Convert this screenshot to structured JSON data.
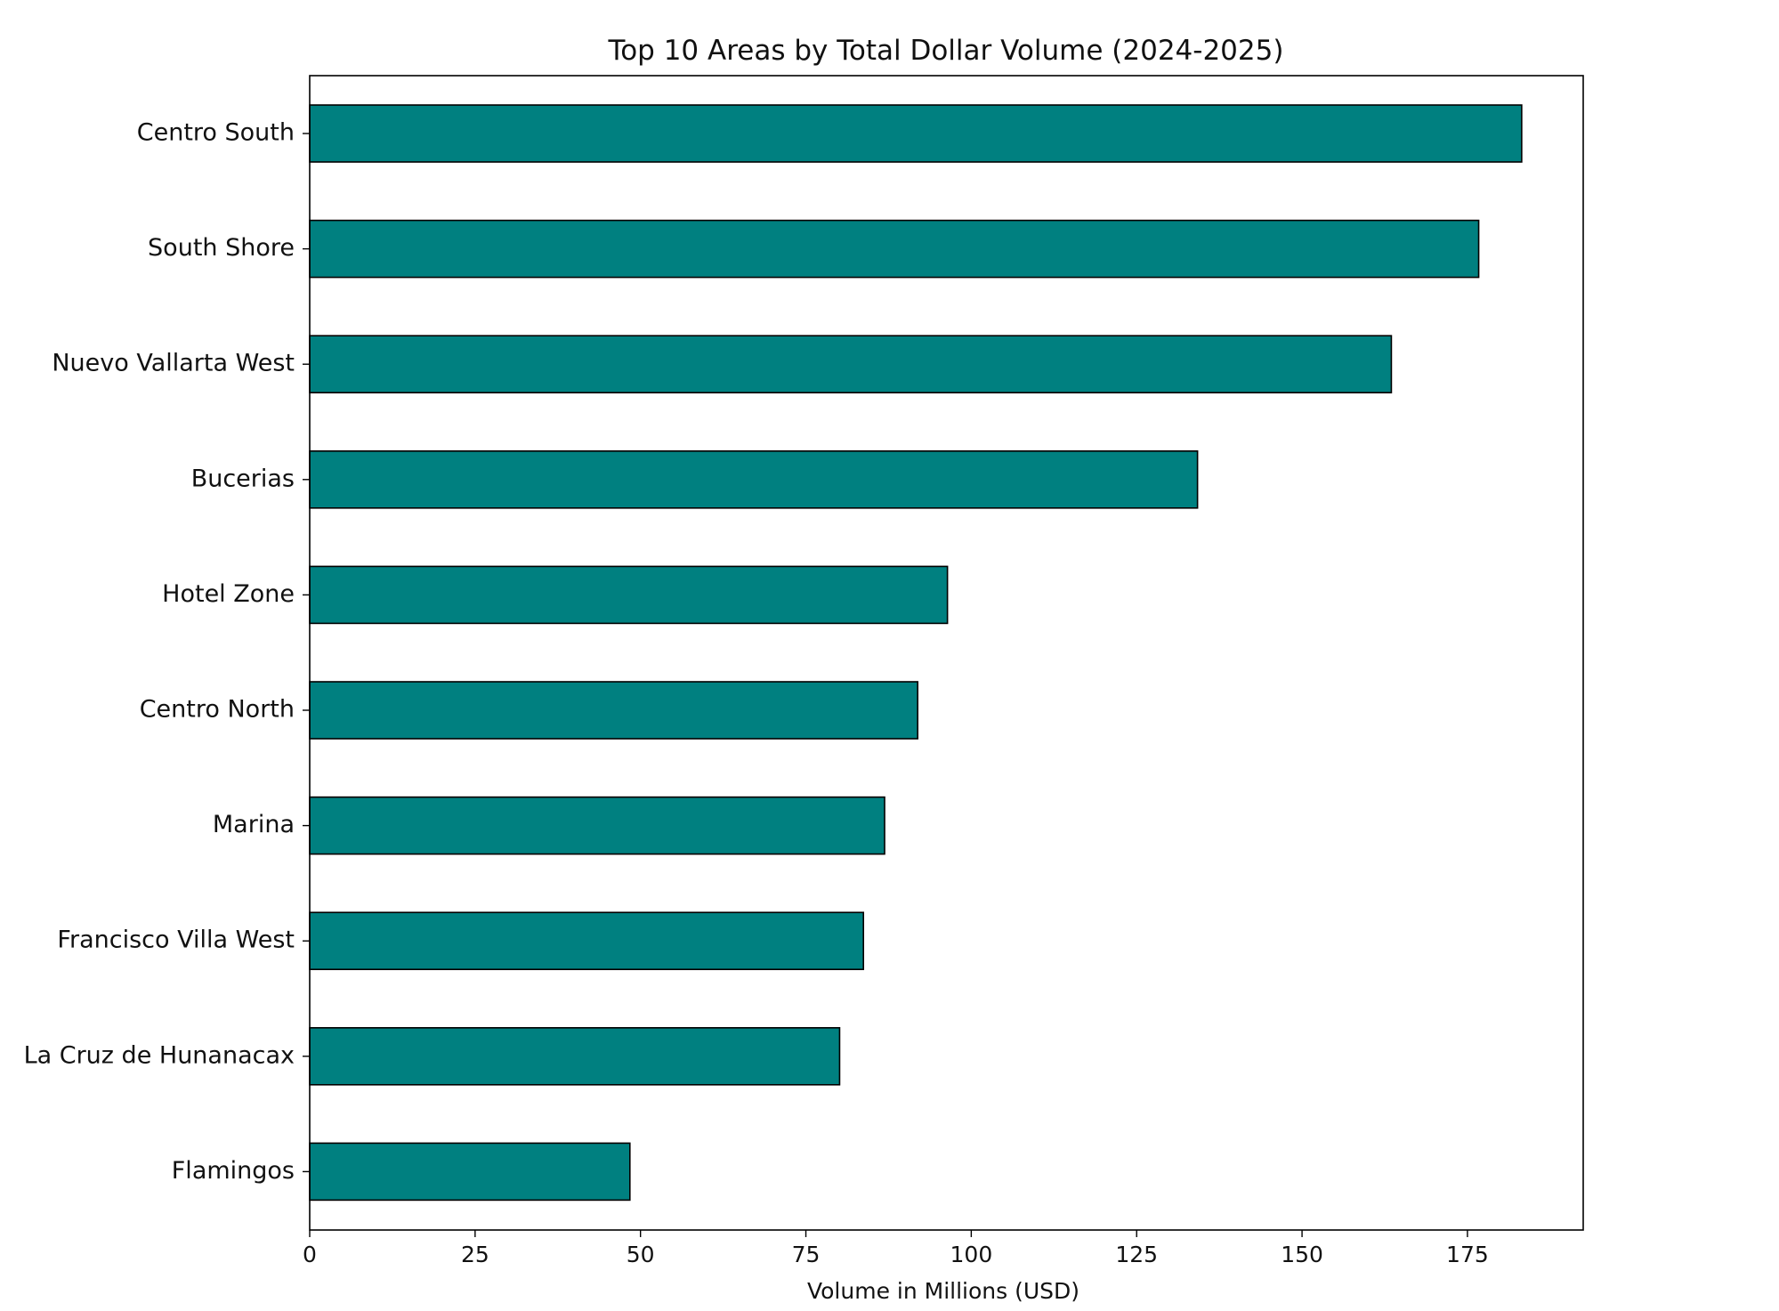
{
  "chart_data": {
    "type": "bar",
    "orientation": "horizontal",
    "title": "Top 10 Areas by Total Dollar Volume (2024-2025)",
    "xlabel": "Volume in Millions (USD)",
    "ylabel": "",
    "categories": [
      "Centro South",
      "South Shore",
      "Nuevo Vallarta West",
      "Bucerias",
      "Hotel Zone",
      "Centro North",
      "Marina",
      "Francisco Villa West",
      "La Cruz de Hunanacax",
      "Flamingos"
    ],
    "values": [
      183.2,
      176.7,
      163.5,
      134.2,
      96.4,
      91.9,
      86.9,
      83.7,
      80.1,
      48.4
    ],
    "xlim": [
      0,
      192.5
    ],
    "xticks": [
      0,
      25,
      50,
      75,
      100,
      125,
      150,
      175
    ],
    "grid": false,
    "legend": "none",
    "colors": {
      "bar_fill": "#008080",
      "bar_edge": "#000000"
    }
  }
}
